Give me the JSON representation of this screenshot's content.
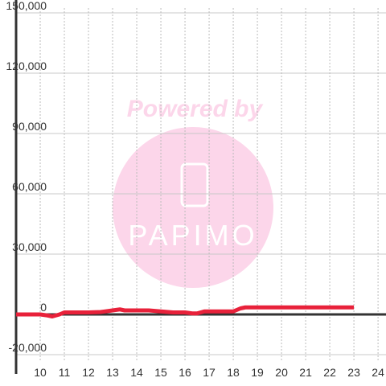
{
  "chart_data": {
    "type": "line",
    "watermark": {
      "title": "Powered by",
      "brand": "PAPIMO"
    },
    "x": [
      9,
      9.5,
      10,
      10.3,
      10.5,
      10.8,
      11,
      11.5,
      12,
      12.5,
      13,
      13.3,
      13.5,
      14,
      14.5,
      15,
      15.5,
      16,
      16.3,
      16.5,
      16.8,
      17,
      17.5,
      18,
      18.3,
      18.5,
      19,
      20,
      21,
      22,
      23
    ],
    "series": [
      {
        "color": "#e8213a",
        "values": [
          0,
          0,
          0,
          -500,
          -1000,
          0,
          1000,
          1000,
          1000,
          1200,
          2000,
          2500,
          2000,
          2000,
          2000,
          1500,
          1000,
          1000,
          500,
          500,
          1500,
          1500,
          1500,
          1500,
          3000,
          3500,
          3500,
          3500,
          3500,
          3500,
          3500
        ]
      }
    ],
    "xlim": [
      9,
      24.33
    ],
    "xticks": [
      10,
      11,
      12,
      13,
      14,
      15,
      16,
      17,
      18,
      19,
      20,
      21,
      22,
      23,
      24
    ],
    "ylim": [
      -20000,
      150000
    ],
    "yticks": [
      {
        "value": -20000,
        "label": "-20,000"
      },
      0,
      {
        "value": 30000,
        "label": "30,000"
      },
      {
        "value": 60000,
        "label": "60,000"
      },
      {
        "value": 90000,
        "label": "90,000"
      },
      {
        "value": 120000,
        "label": "120,000"
      },
      {
        "value": 150000,
        "label": "150,000"
      }
    ],
    "grid": true
  }
}
